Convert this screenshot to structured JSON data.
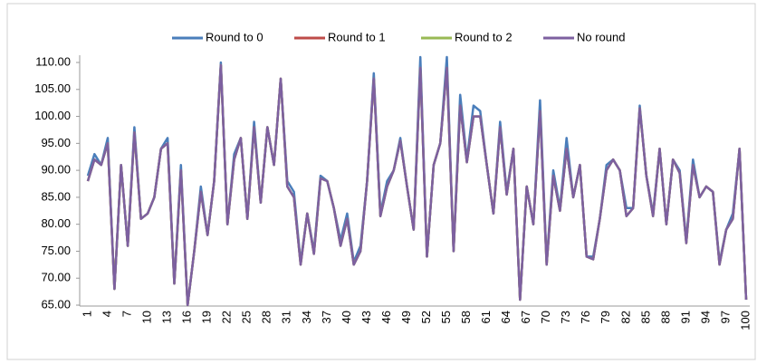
{
  "chart_data": {
    "type": "line",
    "categories": [
      1,
      null,
      null,
      4,
      null,
      null,
      7,
      null,
      null,
      10,
      null,
      null,
      13,
      null,
      null,
      16,
      null,
      null,
      19,
      null,
      null,
      22,
      null,
      null,
      25,
      null,
      null,
      28,
      null,
      null,
      31,
      null,
      null,
      34,
      null,
      null,
      37,
      null,
      null,
      40,
      null,
      null,
      43,
      null,
      null,
      46,
      null,
      null,
      49,
      null,
      null,
      52,
      null,
      null,
      55,
      null,
      null,
      58,
      null,
      null,
      61,
      null,
      null,
      64,
      null,
      null,
      67,
      null,
      null,
      70,
      null,
      null,
      73,
      null,
      null,
      76,
      null,
      null,
      79,
      null,
      null,
      82,
      null,
      null,
      85,
      null,
      null,
      88,
      null,
      null,
      91,
      null,
      null,
      94,
      null,
      null,
      97,
      null,
      null,
      100
    ],
    "series": [
      {
        "name": "Round to 0",
        "color": "#4a7ebb",
        "values": [
          89,
          93,
          91,
          96,
          68,
          91,
          76,
          98,
          81,
          82,
          85,
          94,
          96,
          69,
          91,
          65,
          75,
          87,
          78,
          88,
          110,
          80,
          93,
          96,
          81,
          99,
          84,
          98,
          91,
          107,
          88,
          86,
          73,
          82,
          75,
          89,
          88,
          83,
          77,
          82,
          73,
          76,
          88,
          108,
          82,
          88,
          90,
          96,
          87,
          79,
          111,
          74,
          91,
          95,
          111,
          75,
          104,
          92,
          102,
          101,
          91,
          82,
          99,
          86,
          94,
          66,
          87,
          80,
          103,
          73,
          90,
          83,
          96,
          85,
          91,
          74,
          74,
          81,
          91,
          92,
          90,
          83,
          83,
          102,
          89,
          82,
          94,
          80,
          92,
          90,
          77,
          92,
          85,
          87,
          86,
          73,
          79,
          82,
          94,
          66
        ]
      },
      {
        "name": "Round to 1",
        "color": "#be4b48",
        "values": [
          88,
          92,
          91,
          95,
          68,
          91,
          76,
          97,
          81,
          82,
          85,
          94,
          95,
          69,
          90,
          65,
          75,
          86,
          78,
          88,
          109.5,
          80,
          92,
          96,
          81,
          98,
          84,
          98,
          91,
          107,
          87,
          85,
          72.5,
          82,
          74.5,
          88.5,
          88,
          83,
          76,
          81,
          72.5,
          75,
          88,
          107,
          81.5,
          87,
          90,
          95.5,
          87,
          79,
          109,
          74,
          91,
          95,
          109,
          75,
          102,
          91.5,
          100,
          100,
          91,
          82,
          98,
          85.5,
          94,
          66,
          87,
          80,
          101,
          72.5,
          89,
          82.5,
          94,
          85,
          91,
          74,
          73.5,
          81,
          90,
          92,
          90,
          81.5,
          83,
          101.5,
          89,
          81.5,
          94,
          80,
          92,
          89.5,
          76.5,
          91,
          85,
          87,
          86,
          72.5,
          79,
          81,
          94,
          66
        ]
      },
      {
        "name": "Round to 2",
        "color": "#98b954",
        "values": [
          88,
          92,
          91,
          95,
          68,
          91,
          76,
          97,
          81,
          82,
          85,
          94,
          95,
          69,
          90,
          65,
          75,
          86,
          78,
          88,
          109.5,
          80,
          92,
          96,
          81,
          98,
          84,
          98,
          91,
          107,
          87,
          85,
          72.5,
          82,
          74.5,
          88.5,
          88,
          83,
          76,
          81,
          72.5,
          75,
          88,
          107,
          81.5,
          87,
          90,
          95.5,
          87,
          79,
          109,
          74,
          91,
          95,
          109,
          75,
          102,
          91.5,
          100,
          100,
          91,
          82,
          98,
          85.5,
          94,
          66,
          87,
          80,
          101,
          72.5,
          89,
          82.5,
          94,
          85,
          91,
          74,
          73.5,
          81,
          90,
          92,
          90,
          81.5,
          83,
          101.5,
          89,
          81.5,
          94,
          80,
          92,
          89.5,
          76.5,
          91,
          85,
          87,
          86,
          72.5,
          79,
          81,
          94,
          66
        ]
      },
      {
        "name": "No round",
        "color": "#7d60a0",
        "values": [
          88,
          92,
          91,
          95,
          68,
          91,
          76,
          97,
          81,
          82,
          85,
          94,
          95,
          69,
          90,
          65,
          75,
          86,
          78,
          88,
          109.5,
          80,
          92,
          96,
          81,
          98,
          84,
          98,
          91,
          107,
          87,
          85,
          72.5,
          82,
          74.5,
          88.5,
          88,
          83,
          76,
          81,
          72.5,
          75,
          88,
          107,
          81.5,
          87,
          90,
          95.5,
          87,
          79,
          109,
          74,
          91,
          95,
          109,
          75,
          102,
          91.5,
          100,
          100,
          91,
          82,
          98,
          85.5,
          94,
          66,
          87,
          80,
          101,
          72.5,
          89,
          82.5,
          94,
          85,
          91,
          74,
          73.5,
          81,
          90,
          92,
          90,
          81.5,
          83,
          101.5,
          89,
          81.5,
          94,
          80,
          92,
          89.5,
          76.5,
          91,
          85,
          87,
          86,
          72.5,
          79,
          81,
          94,
          66
        ]
      }
    ],
    "ylim": [
      65,
      110
    ],
    "yticks": [
      {
        "value": 65,
        "label": "65.00"
      },
      {
        "value": 70,
        "label": "70.00"
      },
      {
        "value": 75,
        "label": "75.00"
      },
      {
        "value": 80,
        "label": "80.00"
      },
      {
        "value": 85,
        "label": "85.00"
      },
      {
        "value": 90,
        "label": "90.00"
      },
      {
        "value": 95,
        "label": "95.00"
      },
      {
        "value": 100,
        "label": "100.00"
      },
      {
        "value": 105,
        "label": "105.00"
      },
      {
        "value": 110,
        "label": "110.00"
      }
    ],
    "grid": false,
    "legend": "top"
  }
}
